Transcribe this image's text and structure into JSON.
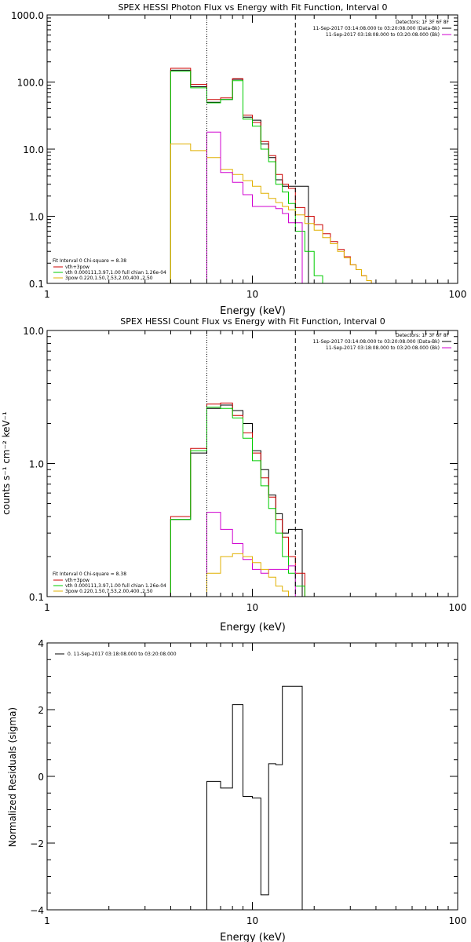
{
  "chart_data": [
    {
      "type": "line",
      "title": "SPEX HESSI Photon Flux vs Energy with Fit Function, Interval 0",
      "xlabel": "Energy (keV)",
      "ylabel": "",
      "xscale": "log",
      "yscale": "log",
      "xlim": [
        1,
        100
      ],
      "ylim": [
        0.1,
        1000
      ],
      "xticks": [
        {
          "v": 1,
          "label": "1"
        },
        {
          "v": 10,
          "label": "10"
        },
        {
          "v": 100,
          "label": "100"
        }
      ],
      "yticks": [
        {
          "v": 0.1,
          "label": "0.1"
        },
        {
          "v": 1,
          "label": "1.0"
        },
        {
          "v": 10,
          "label": "10.0"
        },
        {
          "v": 100,
          "label": "100.0"
        },
        {
          "v": 1000,
          "label": "1000.0"
        }
      ],
      "vlines": [
        {
          "x": 6.0,
          "style": "dotted"
        },
        {
          "x": 16.2,
          "style": "dashed"
        }
      ],
      "header": [
        "Detectors: 1F 3F 6F 8F",
        "11-Sep-2017 03:14:08.000 to 03:20:08.000 (Data-Bk)",
        "11-Sep-2017 03:18:08.000 to 03:20:08.000 (Bk)"
      ],
      "header_colors": [
        "#000000",
        "#000000",
        "#d000d0"
      ],
      "fit_legend": {
        "lines": [
          "Fit Interval 0   Chi-square = 8.38",
          "vth+3pow",
          "vth 0.000111,3.97,1.00  full chian 1.26e-04",
          "3pow 0.220,1.50,7.53,2.00,400.,2.50"
        ],
        "colors": [
          "",
          "#cc0000",
          "#00cc00",
          "#e0b000"
        ]
      },
      "series": [
        {
          "color": "#000000",
          "x": [
            4.0,
            5.0,
            6.0,
            7.0,
            8.0,
            9.0,
            10.0,
            11.0,
            12.0,
            13.0,
            14.0,
            16.2
          ],
          "y": [
            150,
            85,
            50,
            55,
            110,
            30,
            27,
            12,
            7.5,
            3.5,
            2.8,
            2.8
          ]
        },
        {
          "color": "#cc0000",
          "x": [
            4.0,
            5.0,
            6.0,
            7.0,
            8.0,
            9.0,
            10.0,
            11.0,
            12.0,
            13.0,
            14.0,
            15.0,
            16.2,
            18.0,
            20.0,
            22.0,
            24.0,
            26.0,
            28.0,
            30.0,
            32.0,
            34.0,
            36.0,
            38.0,
            40.0,
            42.0,
            44.0
          ],
          "y": [
            160,
            92,
            55,
            58,
            112,
            32,
            25,
            13,
            8,
            4.2,
            3.0,
            2.6,
            1.35,
            1.0,
            0.75,
            0.55,
            0.42,
            0.32,
            0.25,
            0.19,
            0.16,
            0.13,
            0.11,
            0.09,
            0.09,
            0.09,
            0.09
          ]
        },
        {
          "color": "#00cc00",
          "x": [
            4.0,
            5.0,
            6.0,
            7.0,
            8.0,
            9.0,
            10.0,
            11.0,
            12.0,
            13.0,
            14.0,
            15.0,
            16.2,
            18.0,
            20.0,
            22.0
          ],
          "y": [
            145,
            82,
            49,
            55,
            105,
            28,
            22,
            10,
            6.5,
            3.0,
            2.3,
            1.55,
            0.6,
            0.3,
            0.13,
            0.1
          ]
        },
        {
          "color": "#e0b000",
          "x": [
            4.0,
            5.0,
            6.0,
            7.0,
            8.0,
            9.0,
            10.0,
            11.0,
            12.0,
            13.0,
            14.0,
            15.0,
            16.2,
            18.0,
            20.0,
            22.0,
            24.0,
            26.0,
            28.0,
            30.0,
            32.0,
            34.0,
            36.0,
            38.0,
            40.0,
            42.0,
            44.0
          ],
          "y": [
            12,
            9.5,
            7.5,
            5.0,
            4.2,
            3.4,
            2.8,
            2.2,
            1.85,
            1.6,
            1.4,
            1.25,
            1.05,
            0.78,
            0.62,
            0.48,
            0.39,
            0.3,
            0.24,
            0.19,
            0.16,
            0.13,
            0.11,
            0.1,
            0.09,
            0.09,
            0.09
          ]
        },
        {
          "color": "#d000d0",
          "x": [
            6.0,
            7.0,
            8.0,
            9.0,
            10.0,
            11.0,
            12.0,
            13.0,
            14.0,
            15.0,
            16.2
          ],
          "y": [
            18,
            4.5,
            3.2,
            2.1,
            1.4,
            1.4,
            1.4,
            1.3,
            1.1,
            0.8,
            0.8
          ]
        }
      ]
    },
    {
      "type": "line",
      "title": "SPEX HESSI Count Flux vs Energy with Fit Function, Interval 0",
      "xlabel": "Energy (keV)",
      "ylabel": "counts s⁻¹ cm⁻² keV⁻¹",
      "xscale": "log",
      "yscale": "log",
      "xlim": [
        1,
        100
      ],
      "ylim": [
        0.1,
        10
      ],
      "xticks": [
        {
          "v": 1,
          "label": "1"
        },
        {
          "v": 10,
          "label": "10"
        },
        {
          "v": 100,
          "label": "100"
        }
      ],
      "yticks": [
        {
          "v": 0.1,
          "label": "0.1"
        },
        {
          "v": 1,
          "label": "1.0"
        },
        {
          "v": 10,
          "label": "10.0"
        }
      ],
      "vlines": [
        {
          "x": 6.0,
          "style": "dotted"
        },
        {
          "x": 16.2,
          "style": "dashed"
        }
      ],
      "header": [
        "Detectors: 1F 3F 6F 8F",
        "11-Sep-2017 03:14:08.000 to 03:20:08.000 (Data-Bk)",
        "11-Sep-2017 03:18:08.000 to 03:20:08.000 (Bk)"
      ],
      "header_colors": [
        "#000000",
        "#000000",
        "#d000d0"
      ],
      "fit_legend": {
        "lines": [
          "Fit Interval 0   Chi-square = 8.38",
          "vth+3pow",
          "vth 0.000111,3.97,1.00  full chian 1.26e-04",
          "3pow 0.220,1.50,7.53,2.00,400.,2.50"
        ],
        "colors": [
          "",
          "#cc0000",
          "#00cc00",
          "#e0b000"
        ]
      },
      "series": [
        {
          "color": "#000000",
          "x": [
            4.0,
            5.0,
            6.0,
            7.0,
            8.0,
            9.0,
            10.0,
            11.0,
            12.0,
            13.0,
            14.0,
            15.0,
            16.2
          ],
          "y": [
            0.38,
            1.2,
            2.6,
            2.75,
            2.5,
            2.0,
            1.25,
            0.9,
            0.58,
            0.42,
            0.3,
            0.32,
            0.32
          ]
        },
        {
          "color": "#cc0000",
          "x": [
            4.0,
            5.0,
            6.0,
            7.0,
            8.0,
            9.0,
            10.0,
            11.0,
            12.0,
            13.0,
            14.0,
            15.0,
            16.2,
            18.0,
            20.0
          ],
          "y": [
            0.4,
            1.3,
            2.8,
            2.85,
            2.3,
            1.7,
            1.2,
            0.78,
            0.56,
            0.38,
            0.28,
            0.2,
            0.15,
            0.1,
            0.08
          ]
        },
        {
          "color": "#00cc00",
          "x": [
            4.0,
            5.0,
            6.0,
            7.0,
            8.0,
            9.0,
            10.0,
            11.0,
            12.0,
            13.0,
            14.0,
            15.0,
            16.2,
            18.0
          ],
          "y": [
            0.38,
            1.25,
            2.65,
            2.6,
            2.2,
            1.55,
            1.05,
            0.68,
            0.46,
            0.3,
            0.2,
            0.15,
            0.12,
            0.08
          ]
        },
        {
          "color": "#d000d0",
          "x": [
            6.0,
            7.0,
            8.0,
            9.0,
            10.0,
            11.0,
            12.0,
            13.0,
            14.0,
            15.0,
            16.2
          ],
          "y": [
            0.43,
            0.32,
            0.25,
            0.19,
            0.16,
            0.15,
            0.16,
            0.16,
            0.16,
            0.17,
            0.08
          ]
        },
        {
          "color": "#e0b000",
          "x": [
            6.0,
            7.0,
            8.0,
            9.0,
            10.0,
            11.0,
            12.0,
            13.0,
            14.0,
            15.0,
            16.2
          ],
          "y": [
            0.15,
            0.2,
            0.21,
            0.2,
            0.18,
            0.16,
            0.14,
            0.12,
            0.11,
            0.1,
            0.08
          ]
        }
      ]
    },
    {
      "type": "line",
      "title": "",
      "xlabel": "Energy (keV)",
      "ylabel": "Normalized Residuals (sigma)",
      "xscale": "log",
      "yscale": "linear",
      "xlim": [
        1,
        100
      ],
      "ylim": [
        -4,
        4
      ],
      "xticks": [
        {
          "v": 1,
          "label": "1"
        },
        {
          "v": 10,
          "label": "10"
        },
        {
          "v": 100,
          "label": "100"
        }
      ],
      "yticks": [
        {
          "v": -4,
          "label": "−4"
        },
        {
          "v": -2,
          "label": "−2"
        },
        {
          "v": 0,
          "label": "0"
        },
        {
          "v": 2,
          "label": "2"
        },
        {
          "v": 4,
          "label": "4"
        }
      ],
      "legend": "0. 11-Sep-2017 03:18:08.000 to 03:20:08.000",
      "series": [
        {
          "color": "#000000",
          "x": [
            6.0,
            7.0,
            8.0,
            9.0,
            10.0,
            11.0,
            12.0,
            13.0,
            14.0,
            15.0,
            16.2
          ],
          "y": [
            -0.15,
            -0.35,
            2.15,
            -0.6,
            -0.65,
            -3.55,
            0.38,
            0.35,
            2.7,
            2.7,
            2.7
          ]
        }
      ]
    }
  ]
}
